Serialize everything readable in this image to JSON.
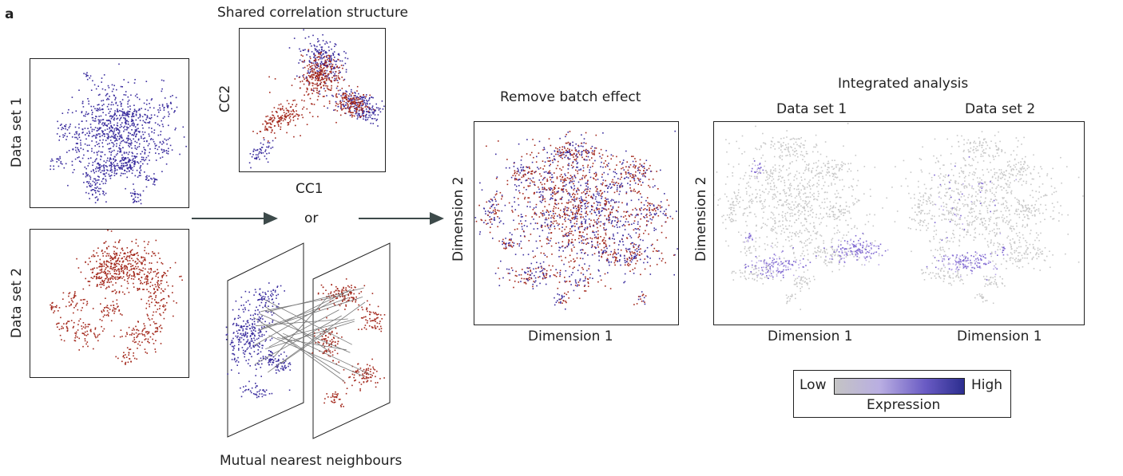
{
  "panel_label": "a",
  "left": {
    "dataset1_label": "Data set 1",
    "dataset2_label": "Data set 2"
  },
  "cca": {
    "title": "Shared correlation structure",
    "xlabel": "CC1",
    "ylabel": "CC2"
  },
  "or_label": "or",
  "mnn": {
    "title": "Mutual nearest neighbours"
  },
  "batch": {
    "title": "Remove batch effect",
    "xlabel": "Dimension 1",
    "ylabel": "Dimension 2"
  },
  "integrated": {
    "title": "Integrated analysis",
    "ds1_title": "Data set 1",
    "ds2_title": "Data set 2",
    "ylabel": "Dimension 2",
    "xlabel_left": "Dimension 1",
    "xlabel_right": "Dimension 1"
  },
  "legend": {
    "low": "Low",
    "high": "High",
    "title": "Expression"
  },
  "colors": {
    "dataset1": "#3b2d9e",
    "dataset2": "#a3281c",
    "neutral": "#c8c8c8",
    "arrow": "#3d4a4a"
  }
}
